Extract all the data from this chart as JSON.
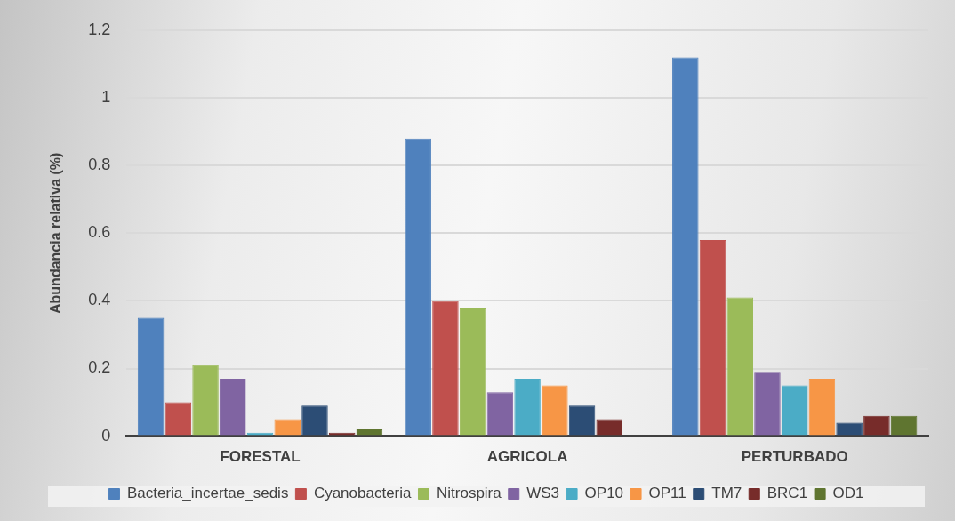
{
  "chart_data": {
    "type": "bar",
    "ylabel": "Abundancia relativa (%)",
    "categories": [
      "FORESTAL",
      "AGRICOLA",
      "PERTURBADO"
    ],
    "series": [
      {
        "name": "Bacteria_incertae_sedis",
        "color": "#4f81bd",
        "values": [
          0.35,
          0.88,
          1.12
        ]
      },
      {
        "name": "Cyanobacteria",
        "color": "#c0504d",
        "values": [
          0.1,
          0.4,
          0.58
        ]
      },
      {
        "name": "Nitrospira",
        "color": "#9bbb59",
        "values": [
          0.21,
          0.38,
          0.41
        ]
      },
      {
        "name": "WS3",
        "color": "#8064a2",
        "values": [
          0.17,
          0.13,
          0.19
        ]
      },
      {
        "name": "OP10",
        "color": "#4bacc6",
        "values": [
          0.01,
          0.17,
          0.15
        ]
      },
      {
        "name": "OP11",
        "color": "#f79646",
        "values": [
          0.05,
          0.15,
          0.17
        ]
      },
      {
        "name": "TM7",
        "color": "#2c4d75",
        "values": [
          0.09,
          0.09,
          0.04
        ]
      },
      {
        "name": "BRC1",
        "color": "#772c2a",
        "values": [
          0.01,
          0.05,
          0.06
        ]
      },
      {
        "name": "OD1",
        "color": "#5f7530",
        "values": [
          0.02,
          0,
          0.06
        ]
      }
    ],
    "ylim": [
      0,
      1.2
    ],
    "yticks": [
      0,
      0.2,
      0.4,
      0.6,
      0.8,
      1,
      1.2
    ],
    "grid": "y",
    "legend": "bottom"
  }
}
